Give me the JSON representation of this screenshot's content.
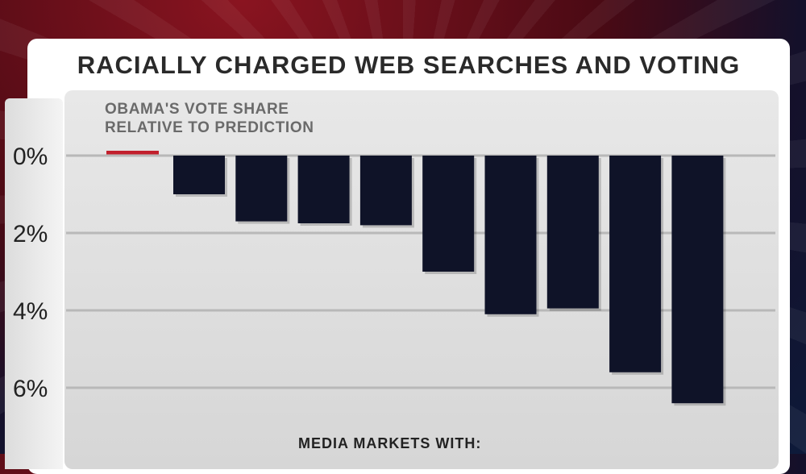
{
  "title": "RACIALLY CHARGED WEB SEARCHES AND VOTING",
  "subtitle_line1": "OBAMA'S VOTE SHARE",
  "subtitle_line2": "RELATIVE TO PREDICTION",
  "xaxis_title": "MEDIA MARKETS WITH:",
  "colors": {
    "bar": "#0f1328",
    "legend": "#c21f2c",
    "card": "#ffffff"
  },
  "chart_data": {
    "type": "bar",
    "title": "RACIALLY CHARGED WEB SEARCHES AND VOTING",
    "ylabel": "OBAMA'S VOTE SHARE RELATIVE TO PREDICTION",
    "xlabel": "MEDIA MARKETS WITH:",
    "yticks": [
      "0%",
      "2%",
      "4%",
      "6%"
    ],
    "ylim": [
      0,
      7.5
    ],
    "y_inverted": true,
    "grid": true,
    "categories": [
      "",
      "",
      "",
      "",
      "",
      "",
      "",
      "",
      ""
    ],
    "values": [
      1.0,
      1.7,
      1.75,
      1.8,
      3.0,
      4.1,
      3.95,
      5.6,
      6.4
    ]
  }
}
